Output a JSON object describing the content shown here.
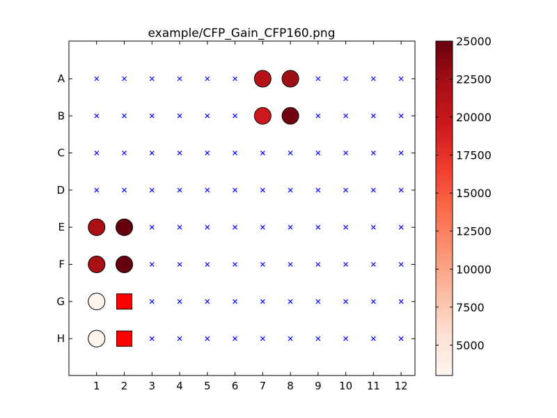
{
  "chart_data": {
    "type": "scatter",
    "title": "example/CFP_Gain_CFP160.png",
    "xlabel": "",
    "ylabel": "",
    "columns": [
      "1",
      "2",
      "3",
      "4",
      "5",
      "6",
      "7",
      "8",
      "9",
      "10",
      "11",
      "12"
    ],
    "rows": [
      "A",
      "B",
      "C",
      "D",
      "E",
      "F",
      "G",
      "H"
    ],
    "xlim": [
      0,
      12.5
    ],
    "grid": false,
    "empty_marker": "x",
    "empty_marker_color": "#0000ff",
    "wells": [
      {
        "row": "A",
        "col": 7,
        "value": 21000,
        "shape": "circle"
      },
      {
        "row": "A",
        "col": 8,
        "value": 22500,
        "shape": "circle"
      },
      {
        "row": "B",
        "col": 7,
        "value": 19500,
        "shape": "circle"
      },
      {
        "row": "B",
        "col": 8,
        "value": 24500,
        "shape": "circle"
      },
      {
        "row": "E",
        "col": 1,
        "value": 22000,
        "shape": "circle"
      },
      {
        "row": "E",
        "col": 2,
        "value": 25000,
        "shape": "circle"
      },
      {
        "row": "F",
        "col": 1,
        "value": 22000,
        "shape": "circle"
      },
      {
        "row": "F",
        "col": 2,
        "value": 25000,
        "shape": "circle"
      },
      {
        "row": "G",
        "col": 1,
        "value": 3200,
        "shape": "circle"
      },
      {
        "row": "H",
        "col": 1,
        "value": 3200,
        "shape": "circle"
      },
      {
        "row": "G",
        "col": 2,
        "value": null,
        "shape": "square",
        "color": "#ff0000"
      },
      {
        "row": "H",
        "col": 2,
        "value": null,
        "shape": "square",
        "color": "#ff0000"
      }
    ],
    "colorbar": {
      "min": 3000,
      "max": 25000,
      "ticks": [
        5000,
        7500,
        10000,
        12500,
        15000,
        17500,
        20000,
        22500,
        25000
      ],
      "tick_labels": [
        "5000",
        "7500",
        "10000",
        "12500",
        "15000",
        "17500",
        "20000",
        "22500",
        "25000"
      ],
      "colormap": "Reds",
      "stops": [
        "#fff5f0",
        "#fee0d2",
        "#fcbba1",
        "#fc9272",
        "#fb6a4a",
        "#ef3b2c",
        "#cb181d",
        "#a50f15",
        "#67000d"
      ]
    }
  }
}
